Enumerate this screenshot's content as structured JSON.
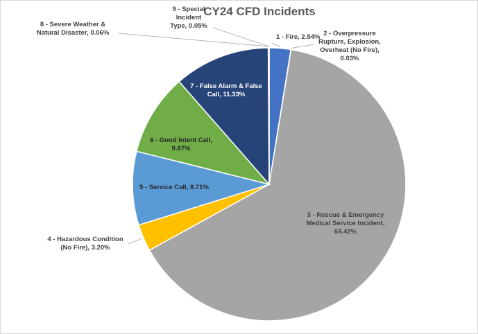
{
  "chart_data": {
    "type": "pie",
    "title": "CY24 CFD Incidents",
    "slices": [
      {
        "label": "1 - Fire",
        "value": 2.54,
        "text": "1 - Fire, 2.54%",
        "color": "#4472c4"
      },
      {
        "label": "2 - Overpressure Rupture, Explosion, Overheat (No Fire)",
        "value": 0.03,
        "text": "2 - Overpressure Rupture, Explosion, Overheat (No Fire), 0.03%",
        "color": "#ed7d31"
      },
      {
        "label": "3 - Rescue & Emergency Medical Service Incident",
        "value": 64.42,
        "text": "3 - Rescue & Emergency Medical Service Incident, 64.42%",
        "color": "#a5a5a5"
      },
      {
        "label": "4 - Hazardous Condition (No Fire)",
        "value": 3.2,
        "text": "4 - Hazardous Condition (No Fire), 3.20%",
        "color": "#ffc000"
      },
      {
        "label": "5 - Service Call",
        "value": 8.71,
        "text": "5 - Service Call, 8.71%",
        "color": "#5b9bd5"
      },
      {
        "label": "6 - Good Intent Call",
        "value": 9.67,
        "text": "6 - Good Intent Call, 9.67%",
        "color": "#70ad47"
      },
      {
        "label": "7 - False Alarm & False Call",
        "value": 11.33,
        "text": "7 - False Alarm & False Call, 11.33%",
        "color": "#264478"
      },
      {
        "label": "8 - Severe Weather & Natural Disaster",
        "value": 0.06,
        "text": "8 - Severe Weather & Natural Disaster, 0.06%",
        "color": "#9e480e"
      },
      {
        "label": "9 - Special Incident Type",
        "value": 0.05,
        "text": "9 - Special Incident Type, 0.05%",
        "color": "#636363"
      }
    ],
    "label_lines": [
      [
        "1 - Fire, 2.54%"
      ],
      [
        "2 - Overpressure",
        "Rupture, Explosion,",
        "Overheat (No Fire),",
        "0.03%"
      ],
      [
        "3 - Rescue & Emergency",
        "Medical Service Incident,",
        "64.42%"
      ],
      [
        "4 - Hazardous Condition",
        "(No Fire), 3.20%"
      ],
      [
        "5 - Service Call, 8.71%"
      ],
      [
        "6 - Good Intent Call,",
        "9.67%"
      ],
      [
        "7 - False Alarm & False",
        "Call, 11.33%"
      ],
      [
        "8 - Severe Weather &",
        "Natural Disaster, 0.06%"
      ],
      [
        "9 - Special",
        "Incident",
        "Type, 0.05%"
      ]
    ],
    "legend": "none",
    "start_angle": "12 o'clock",
    "direction": "clockwise"
  }
}
